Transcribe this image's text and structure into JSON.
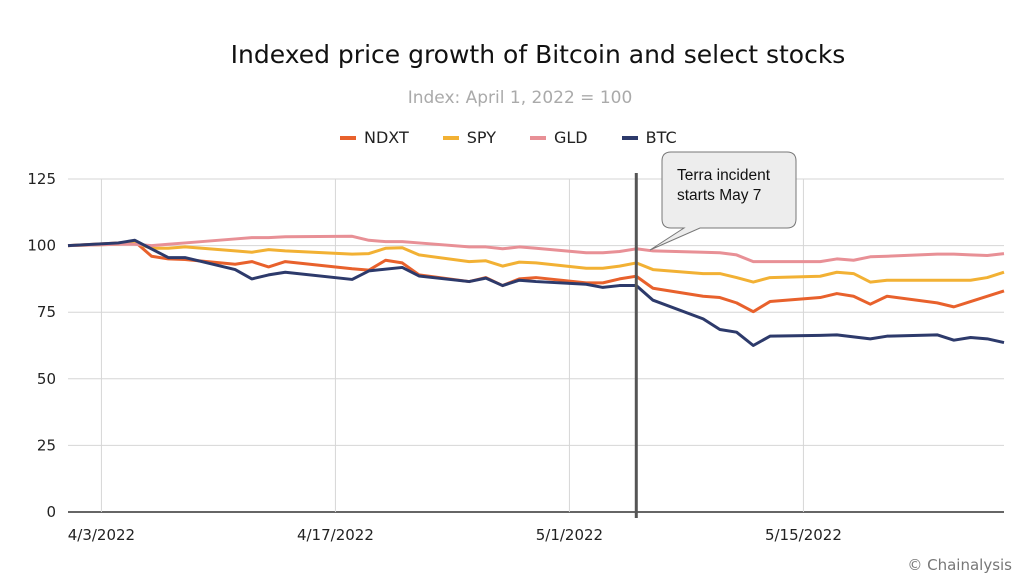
{
  "chart_data": {
    "type": "line",
    "title": "Indexed price growth of Bitcoin and select stocks",
    "subtitle": "Index: April 1, 2022 = 100",
    "xlabel": "",
    "ylabel": "",
    "xlim": [
      "2022-04-01",
      "2022-05-27"
    ],
    "ylim": [
      0,
      125
    ],
    "yticks": [
      0,
      25,
      50,
      75,
      100,
      125
    ],
    "xticks": [
      {
        "date": "2022-04-03",
        "label": "4/3/2022"
      },
      {
        "date": "2022-04-17",
        "label": "4/17/2022"
      },
      {
        "date": "2022-05-01",
        "label": "5/1/2022"
      },
      {
        "date": "2022-05-15",
        "label": "5/15/2022"
      }
    ],
    "grid": true,
    "legend_position": "top",
    "annotation": {
      "text_line1": "Terra incident",
      "text_line2": "starts May 7",
      "date": "2022-05-05"
    },
    "series": [
      {
        "name": "NDXT",
        "color": "#e8612c",
        "points": [
          [
            "2022-04-01",
            100
          ],
          [
            "2022-04-04",
            101
          ],
          [
            "2022-04-05",
            101.5
          ],
          [
            "2022-04-06",
            96
          ],
          [
            "2022-04-07",
            95
          ],
          [
            "2022-04-08",
            94.8
          ],
          [
            "2022-04-11",
            93
          ],
          [
            "2022-04-12",
            94
          ],
          [
            "2022-04-13",
            92
          ],
          [
            "2022-04-14",
            94
          ],
          [
            "2022-04-18",
            91.3
          ],
          [
            "2022-04-19",
            90.8
          ],
          [
            "2022-04-20",
            94.5
          ],
          [
            "2022-04-21",
            93.5
          ],
          [
            "2022-04-22",
            89
          ],
          [
            "2022-04-25",
            86.5
          ],
          [
            "2022-04-26",
            88
          ],
          [
            "2022-04-27",
            85
          ],
          [
            "2022-04-28",
            87.5
          ],
          [
            "2022-04-29",
            88
          ],
          [
            "2022-05-02",
            86
          ],
          [
            "2022-05-03",
            86
          ],
          [
            "2022-05-04",
            87.5
          ],
          [
            "2022-05-05",
            88.5
          ],
          [
            "2022-05-06",
            84
          ],
          [
            "2022-05-09",
            81
          ],
          [
            "2022-05-10",
            80.5
          ],
          [
            "2022-05-11",
            78.5
          ],
          [
            "2022-05-12",
            75.2
          ],
          [
            "2022-05-13",
            79
          ],
          [
            "2022-05-16",
            80.5
          ],
          [
            "2022-05-17",
            82
          ],
          [
            "2022-05-18",
            81
          ],
          [
            "2022-05-19",
            78
          ],
          [
            "2022-05-20",
            81
          ],
          [
            "2022-05-23",
            78.5
          ],
          [
            "2022-05-24",
            77
          ],
          [
            "2022-05-25",
            79
          ],
          [
            "2022-05-27",
            83
          ]
        ]
      },
      {
        "name": "SPY",
        "color": "#f2b134",
        "points": [
          [
            "2022-04-01",
            100
          ],
          [
            "2022-04-04",
            100.5
          ],
          [
            "2022-04-05",
            101
          ],
          [
            "2022-04-06",
            99
          ],
          [
            "2022-04-07",
            99
          ],
          [
            "2022-04-08",
            99.5
          ],
          [
            "2022-04-11",
            98
          ],
          [
            "2022-04-12",
            97.5
          ],
          [
            "2022-04-13",
            98.5
          ],
          [
            "2022-04-14",
            98
          ],
          [
            "2022-04-18",
            96.8
          ],
          [
            "2022-04-19",
            97
          ],
          [
            "2022-04-20",
            99
          ],
          [
            "2022-04-21",
            99.2
          ],
          [
            "2022-04-22",
            96.5
          ],
          [
            "2022-04-25",
            94
          ],
          [
            "2022-04-26",
            94.3
          ],
          [
            "2022-04-27",
            92.3
          ],
          [
            "2022-04-28",
            93.8
          ],
          [
            "2022-04-29",
            93.5
          ],
          [
            "2022-05-02",
            91.5
          ],
          [
            "2022-05-03",
            91.5
          ],
          [
            "2022-05-04",
            92.3
          ],
          [
            "2022-05-05",
            93.5
          ],
          [
            "2022-05-06",
            91
          ],
          [
            "2022-05-09",
            89.5
          ],
          [
            "2022-05-10",
            89.5
          ],
          [
            "2022-05-11",
            88
          ],
          [
            "2022-05-12",
            86.3
          ],
          [
            "2022-05-13",
            88
          ],
          [
            "2022-05-16",
            88.5
          ],
          [
            "2022-05-17",
            90
          ],
          [
            "2022-05-18",
            89.5
          ],
          [
            "2022-05-19",
            86.3
          ],
          [
            "2022-05-20",
            87
          ],
          [
            "2022-05-23",
            87
          ],
          [
            "2022-05-24",
            87
          ],
          [
            "2022-05-25",
            87
          ],
          [
            "2022-05-26",
            88
          ],
          [
            "2022-05-27",
            90
          ]
        ]
      },
      {
        "name": "GLD",
        "color": "#e89096",
        "points": [
          [
            "2022-04-01",
            100
          ],
          [
            "2022-04-04",
            100.5
          ],
          [
            "2022-04-05",
            100.5
          ],
          [
            "2022-04-06",
            100
          ],
          [
            "2022-04-07",
            100.5
          ],
          [
            "2022-04-08",
            101
          ],
          [
            "2022-04-11",
            102.5
          ],
          [
            "2022-04-12",
            103
          ],
          [
            "2022-04-13",
            103
          ],
          [
            "2022-04-14",
            103.3
          ],
          [
            "2022-04-18",
            103.5
          ],
          [
            "2022-04-19",
            102
          ],
          [
            "2022-04-20",
            101.5
          ],
          [
            "2022-04-21",
            101.5
          ],
          [
            "2022-04-22",
            101
          ],
          [
            "2022-04-25",
            99.5
          ],
          [
            "2022-04-26",
            99.5
          ],
          [
            "2022-04-27",
            98.8
          ],
          [
            "2022-04-28",
            99.5
          ],
          [
            "2022-04-29",
            99
          ],
          [
            "2022-05-02",
            97.3
          ],
          [
            "2022-05-03",
            97.3
          ],
          [
            "2022-05-04",
            97.8
          ],
          [
            "2022-05-05",
            98.8
          ],
          [
            "2022-05-06",
            98
          ],
          [
            "2022-05-09",
            97.5
          ],
          [
            "2022-05-10",
            97.3
          ],
          [
            "2022-05-11",
            96.5
          ],
          [
            "2022-05-12",
            94
          ],
          [
            "2022-05-13",
            94
          ],
          [
            "2022-05-16",
            94
          ],
          [
            "2022-05-17",
            95
          ],
          [
            "2022-05-18",
            94.5
          ],
          [
            "2022-05-19",
            95.8
          ],
          [
            "2022-05-20",
            96
          ],
          [
            "2022-05-23",
            96.8
          ],
          [
            "2022-05-24",
            96.8
          ],
          [
            "2022-05-25",
            96.5
          ],
          [
            "2022-05-26",
            96.3
          ],
          [
            "2022-05-27",
            97
          ]
        ]
      },
      {
        "name": "BTC",
        "color": "#2d3a6b",
        "points": [
          [
            "2022-04-01",
            100
          ],
          [
            "2022-04-04",
            101
          ],
          [
            "2022-04-05",
            102
          ],
          [
            "2022-04-07",
            95.5
          ],
          [
            "2022-04-08",
            95.5
          ],
          [
            "2022-04-11",
            91
          ],
          [
            "2022-04-12",
            87.5
          ],
          [
            "2022-04-13",
            89
          ],
          [
            "2022-04-14",
            90
          ],
          [
            "2022-04-18",
            87.3
          ],
          [
            "2022-04-19",
            90.5
          ],
          [
            "2022-04-21",
            91.8
          ],
          [
            "2022-04-22",
            88.6
          ],
          [
            "2022-04-25",
            86.5
          ],
          [
            "2022-04-26",
            87.8
          ],
          [
            "2022-04-27",
            85
          ],
          [
            "2022-04-28",
            87
          ],
          [
            "2022-04-29",
            86.5
          ],
          [
            "2022-05-02",
            85.5
          ],
          [
            "2022-05-03",
            84.3
          ],
          [
            "2022-05-04",
            85
          ],
          [
            "2022-05-05",
            85
          ],
          [
            "2022-05-06",
            79.5
          ],
          [
            "2022-05-09",
            72.5
          ],
          [
            "2022-05-10",
            68.5
          ],
          [
            "2022-05-11",
            67.5
          ],
          [
            "2022-05-12",
            62.5
          ],
          [
            "2022-05-13",
            66
          ],
          [
            "2022-05-16",
            66.3
          ],
          [
            "2022-05-17",
            66.5
          ],
          [
            "2022-05-19",
            65
          ],
          [
            "2022-05-20",
            66
          ],
          [
            "2022-05-23",
            66.5
          ],
          [
            "2022-05-24",
            64.5
          ],
          [
            "2022-05-25",
            65.5
          ],
          [
            "2022-05-26",
            65
          ],
          [
            "2022-05-27",
            63.6
          ]
        ]
      }
    ]
  },
  "footer": {
    "copyright": "© Chainalysis"
  }
}
